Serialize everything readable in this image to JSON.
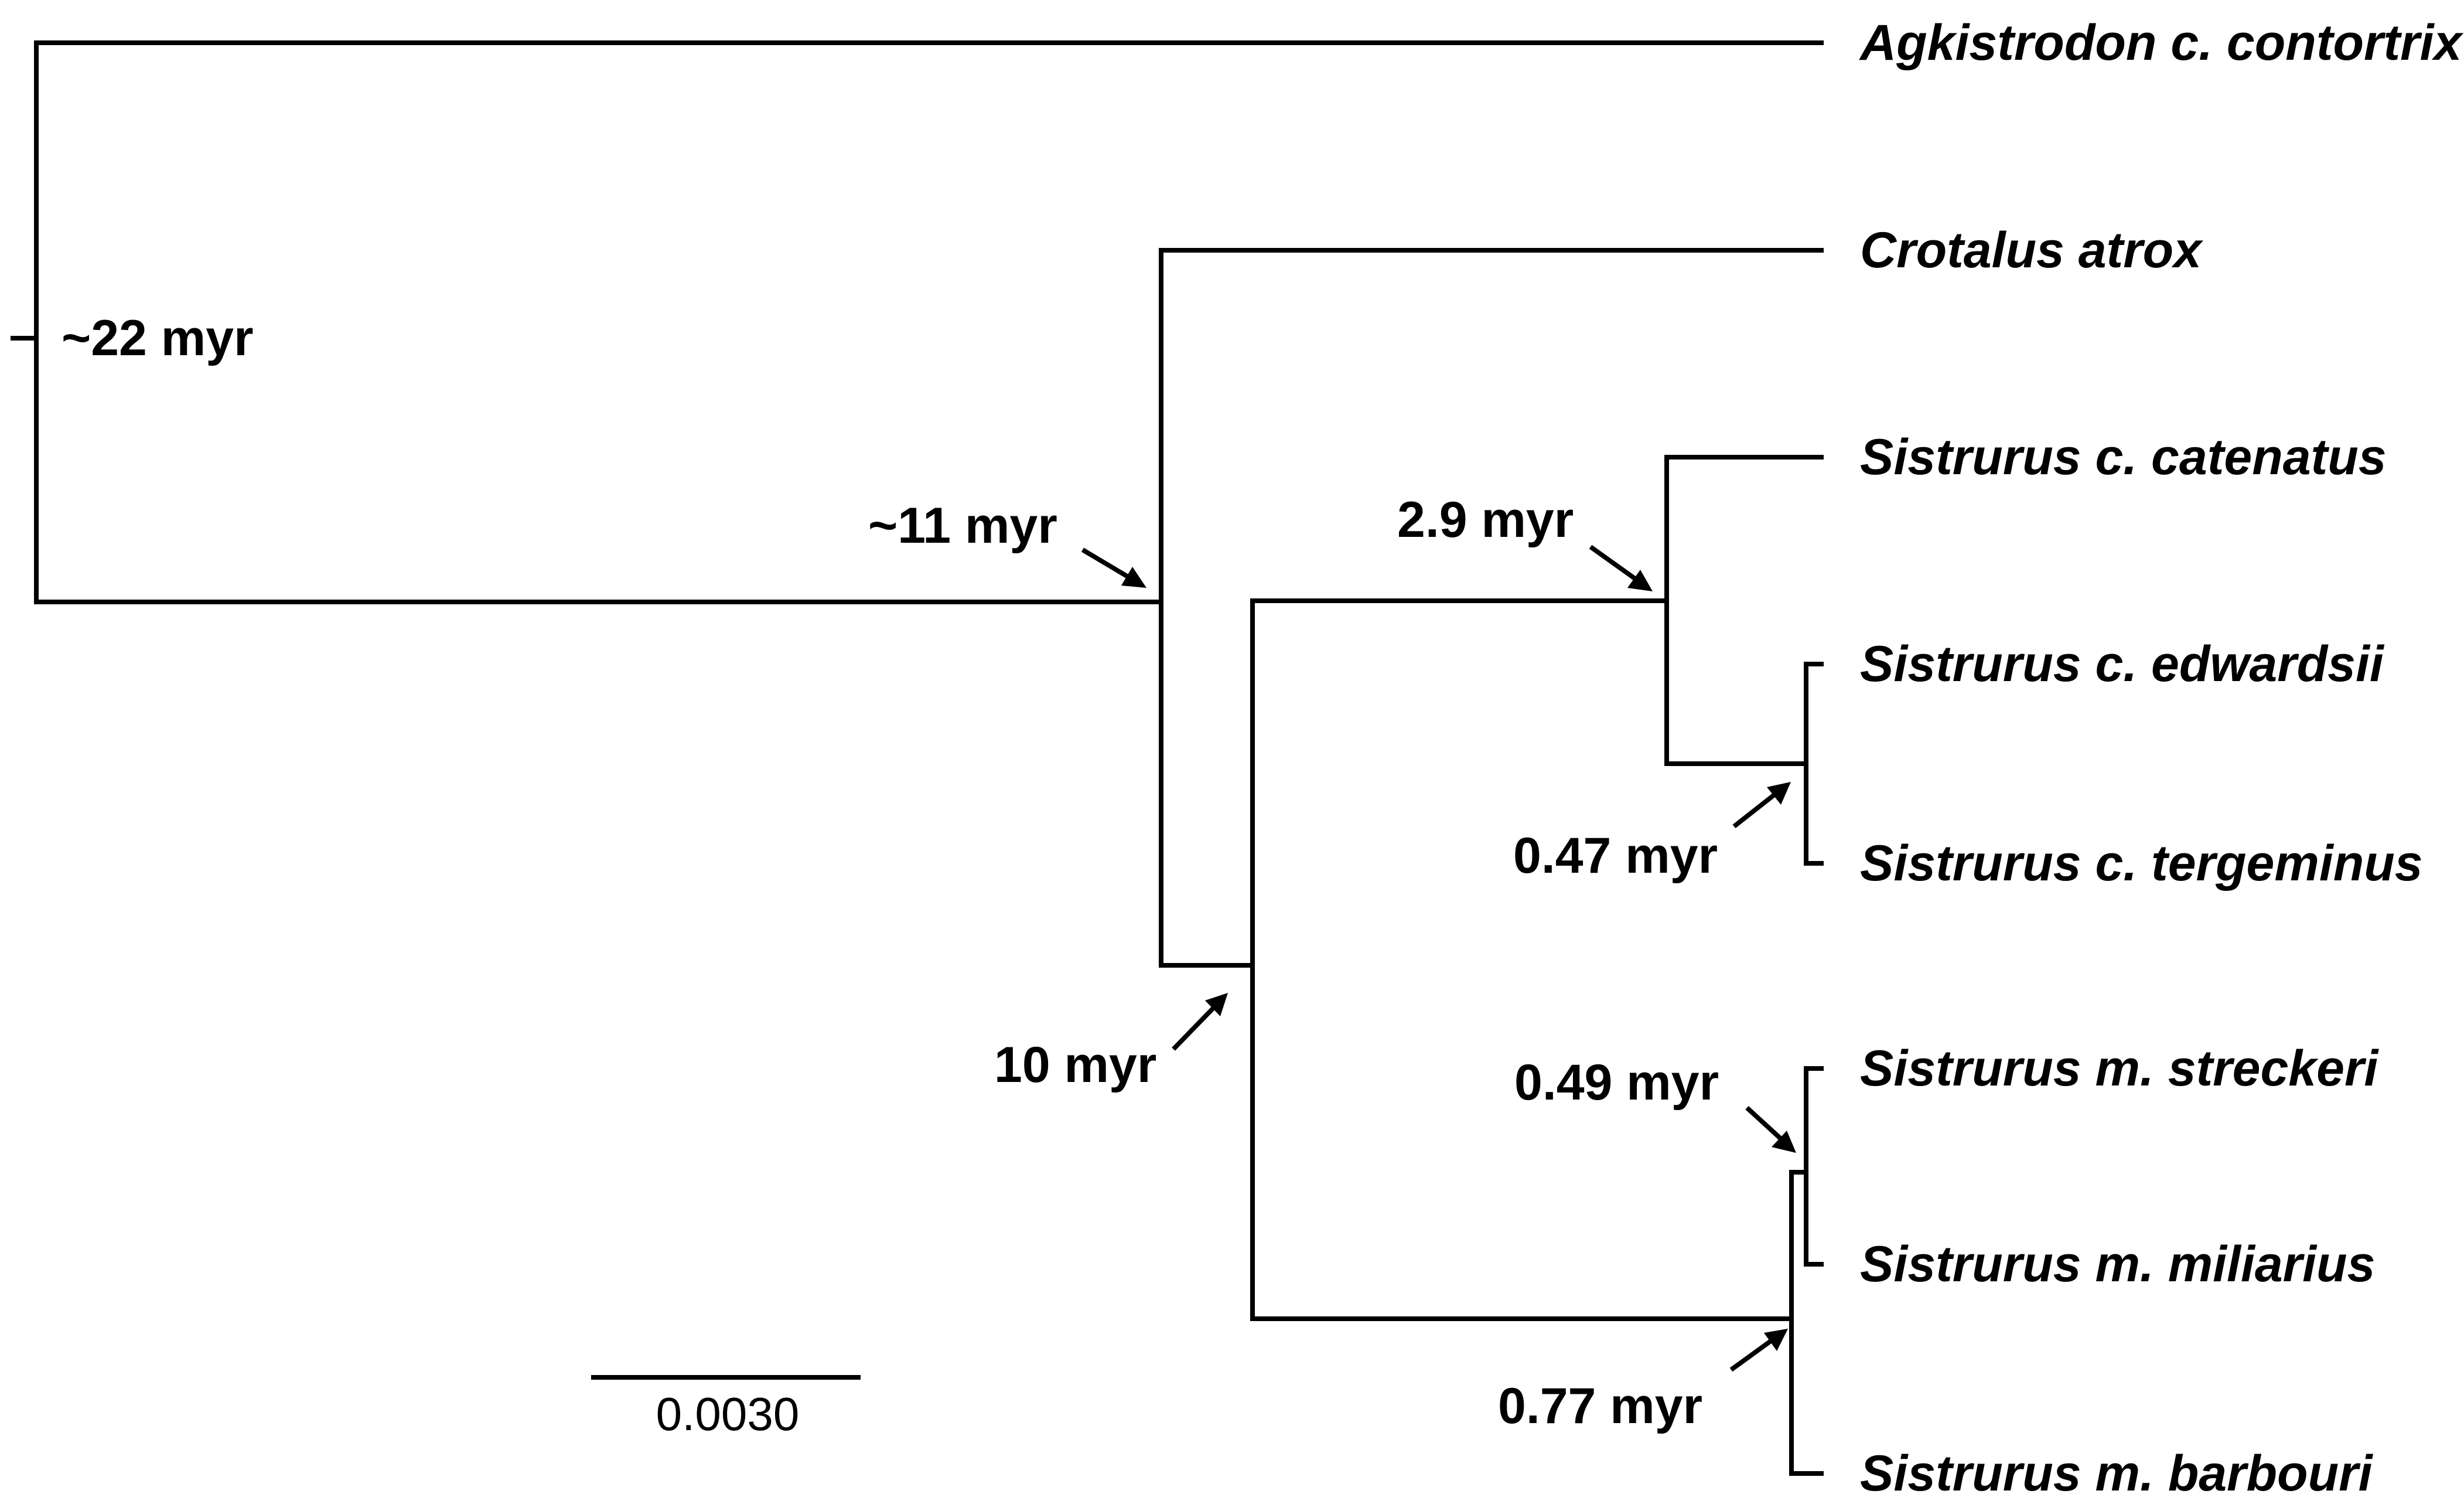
{
  "figure": {
    "type": "phylogenetic-tree"
  },
  "taxa": [
    "Agkistrodon c. contortrix",
    "Crotalus atrox",
    "Sistrurus c. catenatus",
    "Sistrurus c. edwardsii",
    "Sistrurus c. tergeminus",
    "Sistrurus m. streckeri",
    "Sistrurus m. miliarius",
    "Sistrurus m. barbouri"
  ],
  "divergence_times": {
    "root": "~22 myr",
    "crotalus_split": "~11 myr",
    "sistrurus_split": "10 myr",
    "catenatus_split": "2.9 myr",
    "edwardsii_tergeminus": "0.47 myr",
    "streckeri_miliarius": "0.49 myr",
    "miliarius_group": "0.77 myr"
  },
  "scale_bar": {
    "label": "0.0030"
  }
}
